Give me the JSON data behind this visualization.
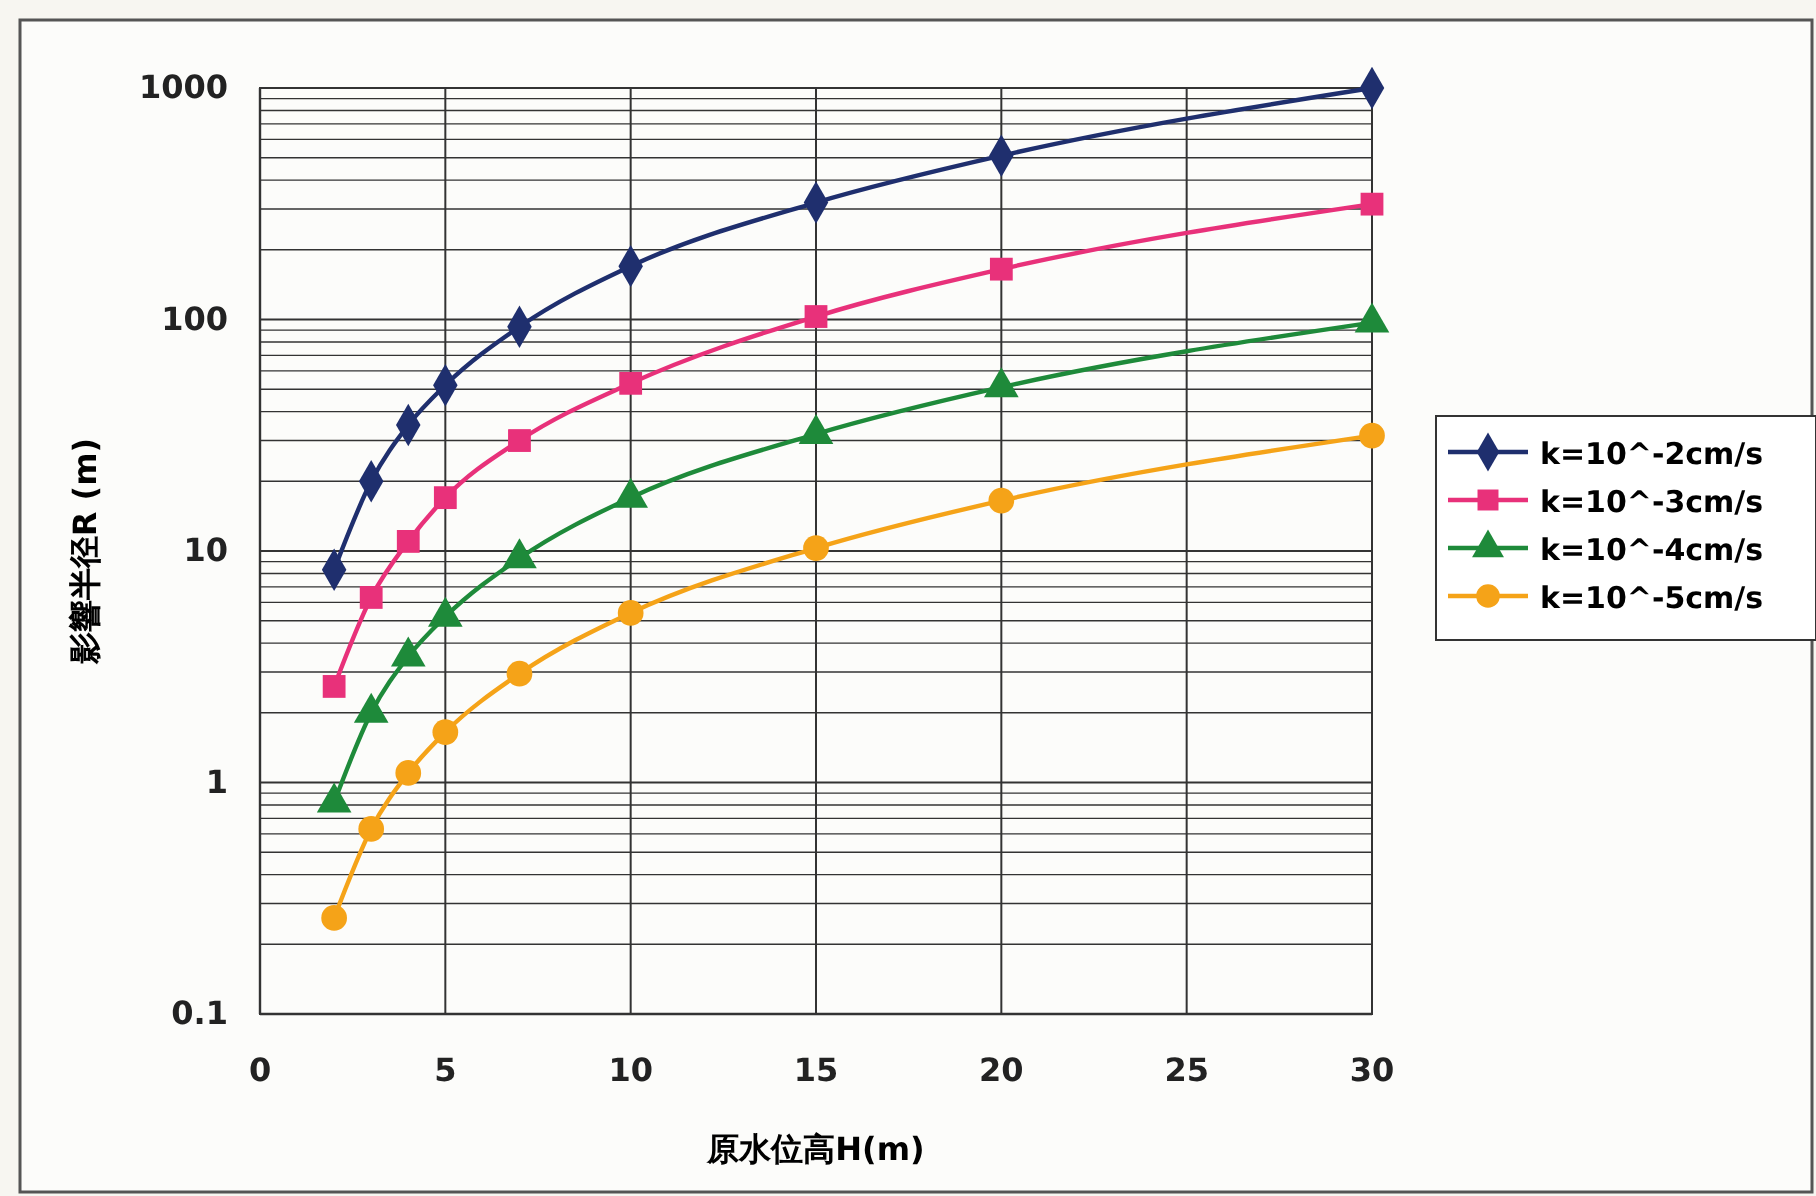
{
  "chart_data": {
    "type": "line",
    "xlabel": "原水位高H(m)",
    "ylabel": "影響半径R (m)",
    "x": [
      2,
      3,
      4,
      5,
      7,
      10,
      15,
      20,
      30
    ],
    "xlim": [
      0,
      30
    ],
    "xticks": [
      0,
      5,
      10,
      15,
      20,
      25,
      30
    ],
    "ylim": [
      0.1,
      1000
    ],
    "yticks": [
      0.1,
      1,
      10,
      100,
      1000
    ],
    "log": true,
    "grid": true,
    "legend": "right",
    "series": [
      {
        "name": "k=10^-2cm/s",
        "color": "#1f2f6e",
        "marker": "diamond",
        "values": [
          8.3,
          20,
          35,
          52,
          93,
          170,
          320,
          510,
          1000
        ]
      },
      {
        "name": "k=10^-3cm/s",
        "color": "#e8317a",
        "marker": "square",
        "values": [
          2.6,
          6.3,
          11,
          17,
          30,
          53,
          103,
          165,
          315
        ]
      },
      {
        "name": "k=10^-4cm/s",
        "color": "#1e8a3a",
        "marker": "triangle",
        "values": [
          0.82,
          2.0,
          3.5,
          5.2,
          9.3,
          17,
          32,
          51,
          97
        ]
      },
      {
        "name": "k=10^-5cm/s",
        "color": "#f5a318",
        "marker": "circle",
        "values": [
          0.26,
          0.63,
          1.1,
          1.65,
          2.95,
          5.4,
          10.3,
          16.5,
          31.5
        ]
      }
    ]
  }
}
